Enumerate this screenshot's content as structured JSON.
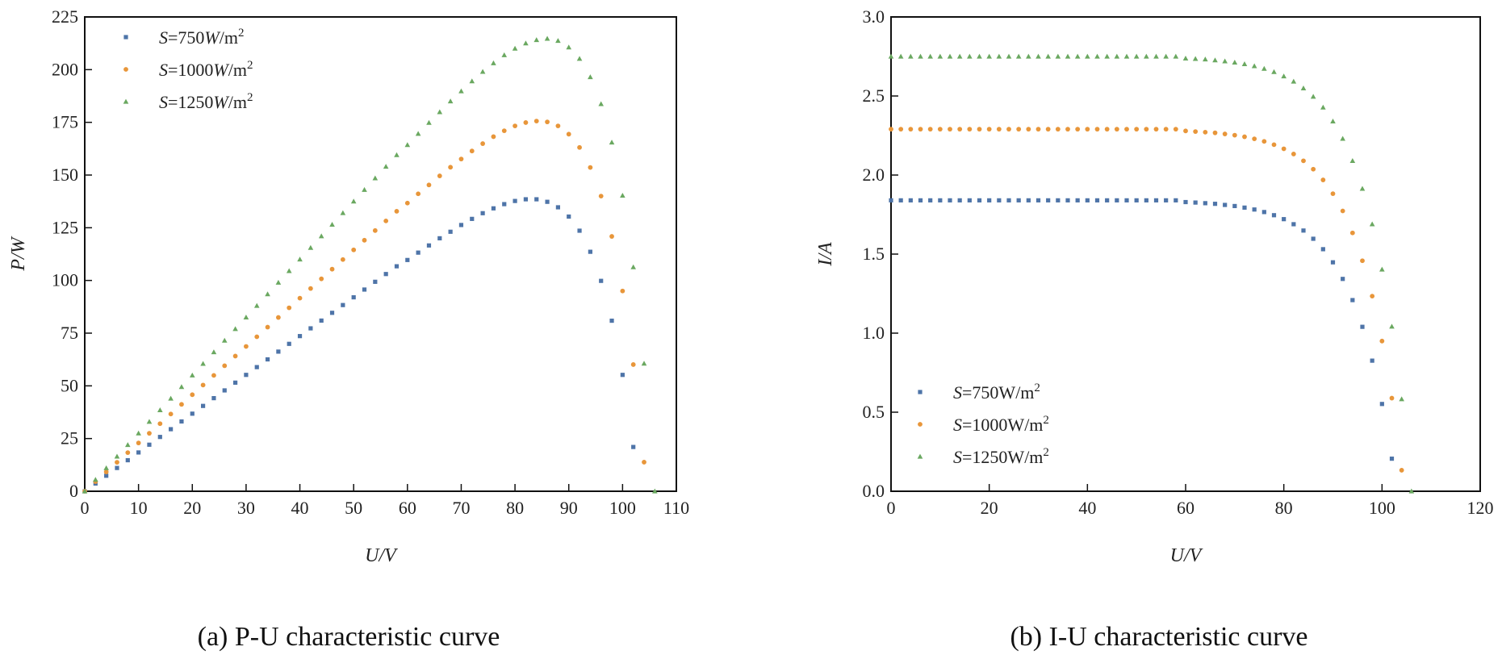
{
  "chart_data": [
    {
      "type": "scatter",
      "caption": "(a) P-U characteristic curve",
      "xlabel": "U/V",
      "ylabel": "P/W",
      "xlim": [
        0,
        110
      ],
      "ylim": [
        0,
        225
      ],
      "xticks": [
        "0",
        "10",
        "20",
        "30",
        "40",
        "50",
        "60",
        "70",
        "80",
        "90",
        "100",
        "110"
      ],
      "yticks": [
        "0",
        "25",
        "50",
        "75",
        "100",
        "125",
        "150",
        "175",
        "200",
        "225"
      ],
      "grid": false,
      "legend_position": "top-left",
      "x": [
        0,
        2,
        4,
        6,
        8,
        10,
        12,
        14,
        16,
        18,
        20,
        22,
        24,
        26,
        28,
        30,
        32,
        34,
        36,
        38,
        40,
        42,
        44,
        46,
        48,
        50,
        52,
        54,
        56,
        58,
        60,
        62,
        64,
        66,
        68,
        70,
        72,
        74,
        76,
        78,
        80,
        82,
        84,
        86,
        88,
        90,
        92,
        94,
        96,
        98,
        100,
        102,
        104,
        106
      ],
      "series": [
        {
          "name": "S=750W/m²",
          "marker": "square",
          "color": "#4e74a8",
          "values": [
            0,
            3.68,
            7.36,
            11.04,
            14.72,
            18.4,
            22.08,
            25.76,
            29.44,
            33.12,
            36.8,
            40.48,
            44.16,
            47.84,
            51.52,
            55.2,
            58.88,
            62.56,
            66.24,
            69.92,
            73.6,
            77.28,
            80.96,
            84.64,
            88.32,
            92,
            95.68,
            99.36,
            103.04,
            106.72,
            109.7,
            113.2,
            116.6,
            120.0,
            123.1,
            126.3,
            129.2,
            131.9,
            134.2,
            136.2,
            137.7,
            138.5,
            138.5,
            137.3,
            134.7,
            130.3,
            123.6,
            113.6,
            99.8,
            80.9,
            55.2,
            21.0,
            null,
            null
          ]
        },
        {
          "name": "S=1000W/m²",
          "marker": "circle",
          "color": "#e8963a",
          "values": [
            0,
            4.58,
            9.16,
            13.74,
            18.32,
            22.9,
            27.48,
            32.06,
            36.64,
            41.22,
            45.8,
            50.38,
            54.96,
            59.54,
            64.12,
            68.7,
            73.28,
            77.86,
            82.44,
            87.02,
            91.6,
            96.18,
            100.76,
            105.34,
            109.92,
            114.5,
            119.08,
            123.66,
            128.24,
            132.82,
            136.7,
            141.1,
            145.3,
            149.6,
            153.7,
            157.6,
            161.4,
            164.9,
            168.2,
            171.0,
            173.3,
            174.9,
            175.6,
            175.2,
            173.3,
            169.4,
            163.1,
            153.6,
            140.0,
            120.9,
            95.0,
            60.1,
            13.8,
            null
          ]
        },
        {
          "name": "S=1250W/m²",
          "marker": "triangle",
          "color": "#6aa860",
          "values": [
            0,
            5.5,
            11,
            16.5,
            22,
            27.5,
            33,
            38.5,
            44,
            49.5,
            55,
            60.5,
            66,
            71.5,
            77,
            82.5,
            88,
            93.5,
            99,
            104.5,
            110,
            115.5,
            121,
            126.5,
            132,
            137.5,
            143,
            148.5,
            154,
            159.5,
            164.3,
            169.6,
            174.8,
            179.9,
            185.0,
            189.8,
            194.5,
            199.0,
            203.1,
            206.9,
            210.0,
            212.5,
            214.1,
            214.7,
            213.7,
            210.6,
            205.2,
            196.5,
            183.7,
            165.5,
            140.3,
            106.3,
            60.6,
            0
          ]
        }
      ]
    },
    {
      "type": "scatter",
      "caption": "(b) I-U characteristic curve",
      "xlabel": "U/V",
      "ylabel": "I/A",
      "xlim": [
        0,
        120
      ],
      "ylim": [
        0,
        3.0
      ],
      "xticks": [
        "0",
        "20",
        "40",
        "60",
        "80",
        "100",
        "120"
      ],
      "yticks": [
        "0.0",
        "0.5",
        "1.0",
        "1.5",
        "2.0",
        "2.5",
        "3.0"
      ],
      "grid": false,
      "legend_position": "bottom-left",
      "x": [
        0,
        2,
        4,
        6,
        8,
        10,
        12,
        14,
        16,
        18,
        20,
        22,
        24,
        26,
        28,
        30,
        32,
        34,
        36,
        38,
        40,
        42,
        44,
        46,
        48,
        50,
        52,
        54,
        56,
        58,
        60,
        62,
        64,
        66,
        68,
        70,
        72,
        74,
        76,
        78,
        80,
        82,
        84,
        86,
        88,
        90,
        92,
        94,
        96,
        98,
        100,
        102,
        104,
        106
      ],
      "series": [
        {
          "name": "S=750W/m²",
          "marker": "square",
          "color": "#4e74a8",
          "values": [
            1.84,
            1.84,
            1.84,
            1.84,
            1.84,
            1.84,
            1.84,
            1.84,
            1.84,
            1.84,
            1.84,
            1.84,
            1.84,
            1.84,
            1.84,
            1.84,
            1.84,
            1.84,
            1.84,
            1.84,
            1.84,
            1.84,
            1.84,
            1.84,
            1.84,
            1.84,
            1.84,
            1.84,
            1.84,
            1.84,
            1.829,
            1.826,
            1.822,
            1.818,
            1.811,
            1.804,
            1.794,
            1.782,
            1.766,
            1.746,
            1.721,
            1.689,
            1.649,
            1.597,
            1.531,
            1.448,
            1.343,
            1.209,
            1.04,
            0.826,
            0.552,
            0.206,
            null,
            null
          ]
        },
        {
          "name": "S=1000W/m²",
          "marker": "circle",
          "color": "#e8963a",
          "values": [
            2.29,
            2.29,
            2.29,
            2.29,
            2.29,
            2.29,
            2.29,
            2.29,
            2.29,
            2.29,
            2.29,
            2.29,
            2.29,
            2.29,
            2.29,
            2.29,
            2.29,
            2.29,
            2.29,
            2.29,
            2.29,
            2.29,
            2.29,
            2.29,
            2.29,
            2.29,
            2.29,
            2.29,
            2.29,
            2.29,
            2.279,
            2.275,
            2.271,
            2.267,
            2.26,
            2.252,
            2.242,
            2.229,
            2.213,
            2.192,
            2.166,
            2.133,
            2.09,
            2.037,
            1.969,
            1.882,
            1.773,
            1.634,
            1.458,
            1.234,
            0.95,
            0.589,
            0.133,
            null
          ]
        },
        {
          "name": "S=1250W/m²",
          "marker": "triangle",
          "color": "#6aa860",
          "values": [
            2.75,
            2.75,
            2.75,
            2.75,
            2.75,
            2.75,
            2.75,
            2.75,
            2.75,
            2.75,
            2.75,
            2.75,
            2.75,
            2.75,
            2.75,
            2.75,
            2.75,
            2.75,
            2.75,
            2.75,
            2.75,
            2.75,
            2.75,
            2.75,
            2.75,
            2.75,
            2.75,
            2.75,
            2.75,
            2.75,
            2.738,
            2.735,
            2.732,
            2.726,
            2.72,
            2.712,
            2.702,
            2.689,
            2.673,
            2.652,
            2.625,
            2.592,
            2.549,
            2.496,
            2.428,
            2.34,
            2.23,
            2.09,
            1.914,
            1.689,
            1.403,
            1.042,
            0.583,
            0
          ]
        }
      ]
    }
  ]
}
